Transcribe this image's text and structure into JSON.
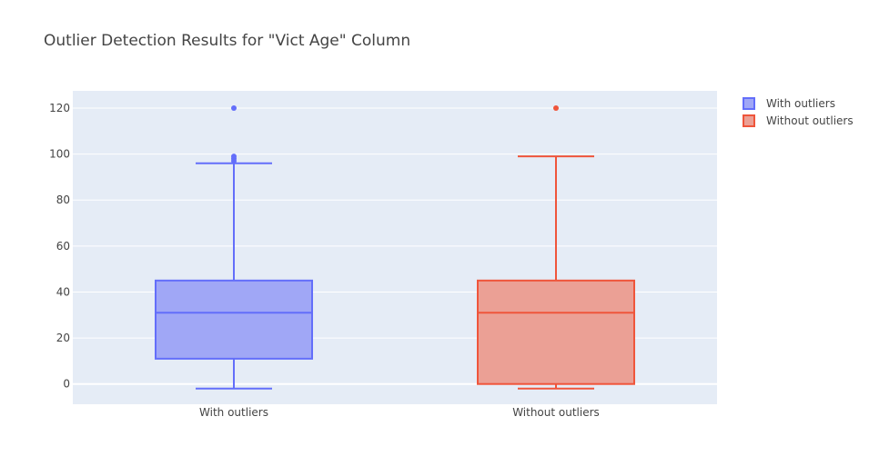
{
  "chart_data": {
    "type": "box",
    "title": "Outlier Detection Results for \"Vict Age\" Column",
    "xlabel": "",
    "ylabel": "",
    "categories": [
      "With outliers",
      "Without outliers"
    ],
    "ylim": [
      -8.8,
      127.5
    ],
    "yticks": [
      0,
      20,
      40,
      60,
      80,
      100,
      120
    ],
    "grid": true,
    "legend_position": "top-right",
    "series": [
      {
        "name": "With outliers",
        "category": "With outliers",
        "color": "#636efa",
        "fill": "#a0a7f6",
        "lower_whisker": -2,
        "q1": 11,
        "median": 31,
        "q3": 45,
        "upper_whisker": 96,
        "outliers": [
          97,
          98,
          99,
          120
        ]
      },
      {
        "name": "Without outliers",
        "category": "Without outliers",
        "color": "#ef553b",
        "fill": "#eba095",
        "lower_whisker": -2,
        "q1": 0,
        "median": 31,
        "q3": 45,
        "upper_whisker": 99,
        "outliers": [
          120
        ]
      }
    ]
  }
}
